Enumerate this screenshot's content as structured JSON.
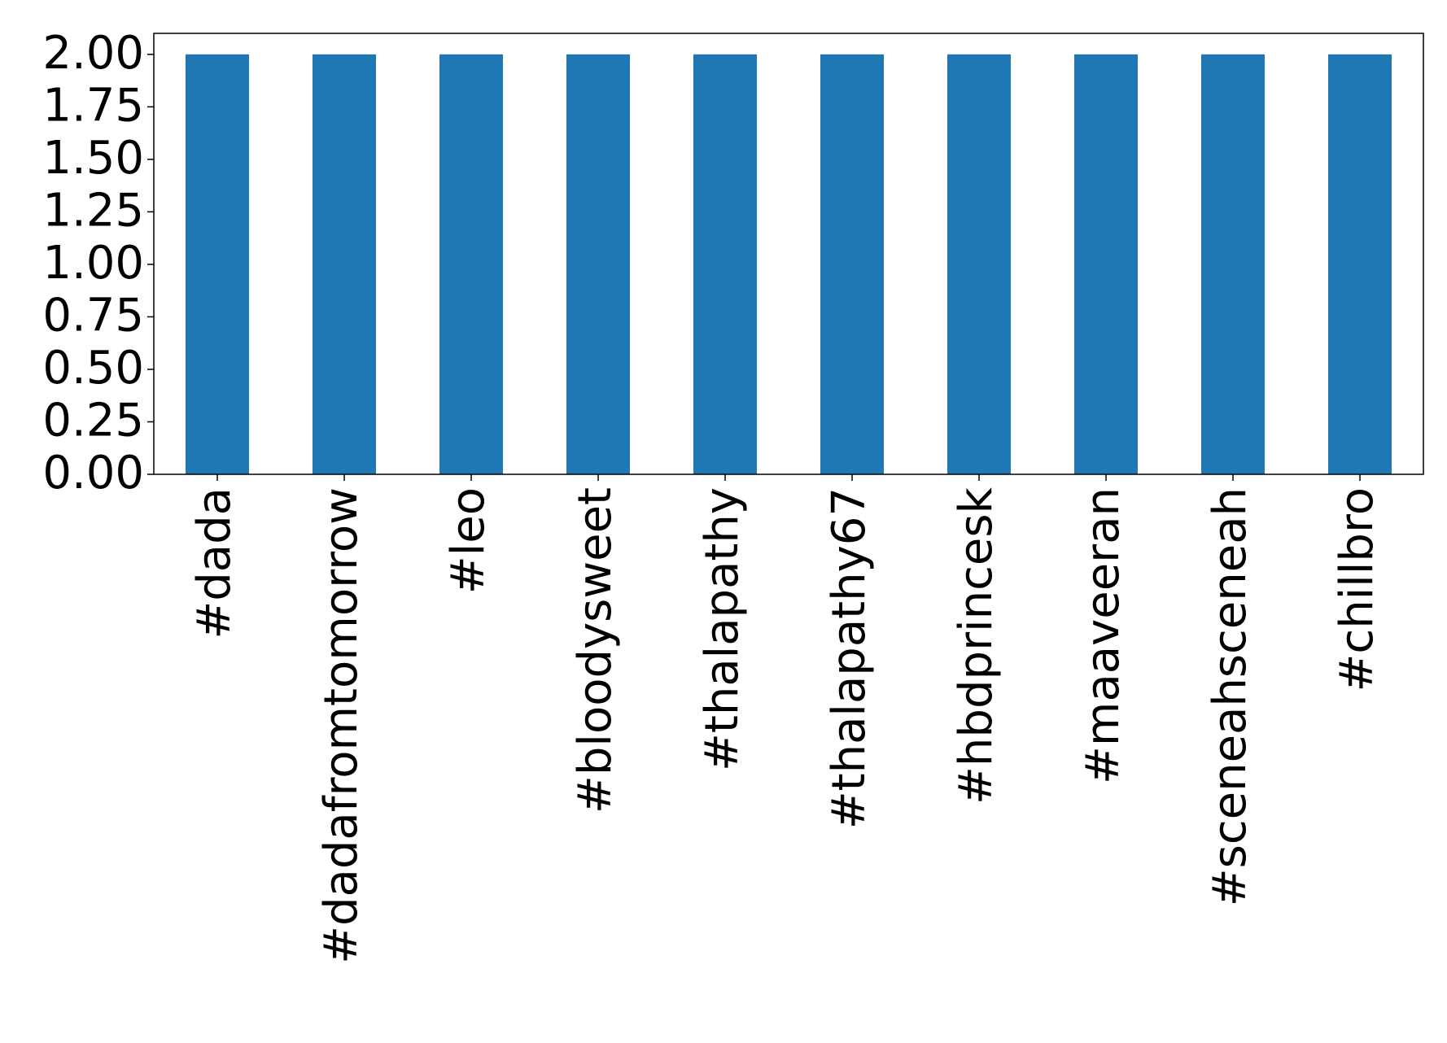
{
  "chart_data": {
    "type": "bar",
    "categories": [
      "#dada",
      "#dadafromtomorrow",
      "#leo",
      "#bloodysweet",
      "#thalapathy",
      "#thalapathy67",
      "#hbdprincesk",
      "#maaveeran",
      "#sceneahsceneah",
      "#chillbro"
    ],
    "values": [
      2,
      2,
      2,
      2,
      2,
      2,
      2,
      2,
      2,
      2
    ],
    "color": "#1f77b4",
    "ylim": [
      0,
      2.1
    ],
    "yticks": [
      {
        "value": 0,
        "label": "0.00"
      },
      {
        "value": 0.25,
        "label": "0.25"
      },
      {
        "value": 0.5,
        "label": "0.50"
      },
      {
        "value": 0.75,
        "label": "0.75"
      },
      {
        "value": 1,
        "label": "1.00"
      },
      {
        "value": 1.25,
        "label": "1.25"
      },
      {
        "value": 1.5,
        "label": "1.50"
      },
      {
        "value": 1.75,
        "label": "1.75"
      },
      {
        "value": 2,
        "label": "2.00"
      }
    ],
    "grid": false
  }
}
